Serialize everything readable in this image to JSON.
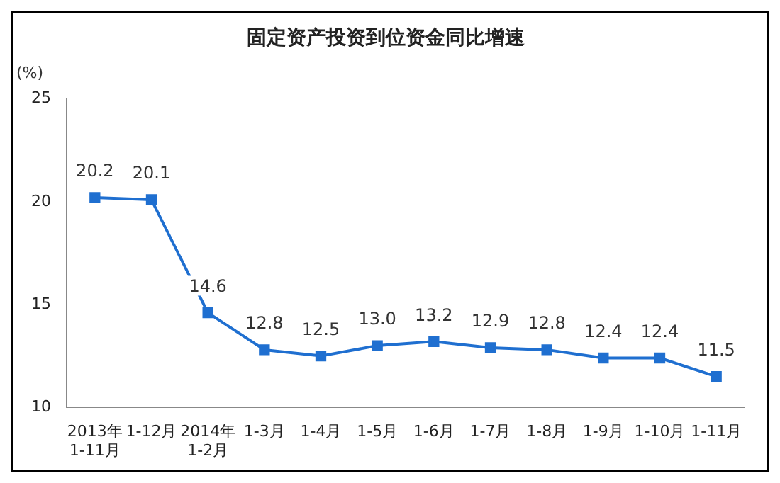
{
  "chart_data": {
    "type": "line",
    "title": "固定资产投资到位资金同比增速",
    "ylabel": "(%)",
    "categories": [
      "2013年\n1-11月",
      "1-12月",
      "2014年\n1-2月",
      "1-3月",
      "1-4月",
      "1-5月",
      "1-6月",
      "1-7月",
      "1-8月",
      "1-9月",
      "1-10月",
      "1-11月"
    ],
    "series": [
      {
        "color": "#1f6fd0",
        "values": [
          20.2,
          20.1,
          14.6,
          12.8,
          12.5,
          13.0,
          13.2,
          12.9,
          12.8,
          12.4,
          12.4,
          11.5
        ],
        "value_labels": [
          "20.2",
          "20.1",
          "14.6",
          "12.8",
          "12.5",
          "13.0",
          "13.2",
          "12.9",
          "12.8",
          "12.4",
          "12.4",
          "11.5"
        ]
      }
    ],
    "ylim": [
      10,
      25
    ],
    "yticks": [
      10,
      15,
      20,
      25
    ],
    "grid": false,
    "legend": false,
    "marker": "square",
    "line_style": "solid"
  }
}
